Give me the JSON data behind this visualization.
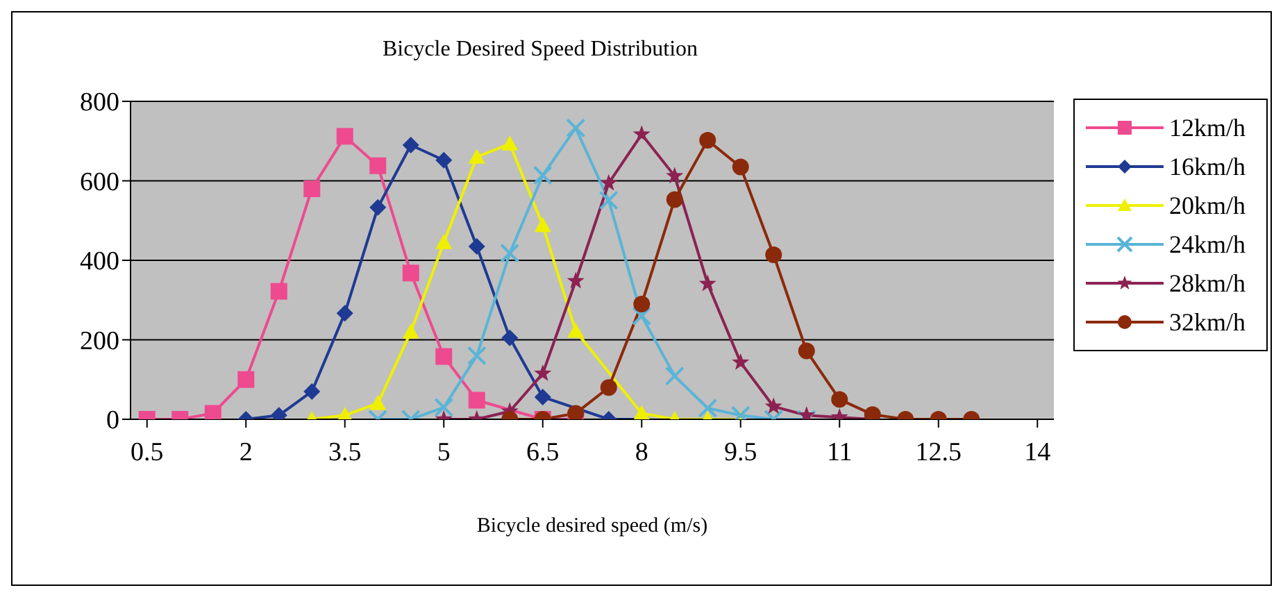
{
  "chart_data": {
    "type": "line",
    "title": "Bicycle Desired Speed Distribution",
    "xlabel": "Bicycle desired speed (m/s)",
    "xlim": [
      0.25,
      14.25
    ],
    "xticks": [
      0.5,
      2,
      3.5,
      5,
      6.5,
      8,
      9.5,
      11,
      12.5,
      14
    ],
    "ylim": [
      0,
      800
    ],
    "yticks": [
      0,
      200,
      400,
      600,
      800
    ],
    "grid": "y",
    "legend": "right",
    "series": [
      {
        "name": "12km/h",
        "color": "#ee4a8f",
        "marker": "square",
        "x": [
          0.5,
          1,
          1.5,
          2,
          2.5,
          3,
          3.5,
          4,
          4.5,
          5,
          5.5,
          6,
          6.5,
          7
        ],
        "values": [
          0,
          0,
          15,
          100,
          322,
          580,
          712,
          638,
          368,
          158,
          48,
          null,
          0,
          0
        ]
      },
      {
        "name": "16km/h",
        "color": "#1f3a93",
        "marker": "diamond",
        "x": [
          2,
          2.5,
          3,
          3.5,
          4,
          4.5,
          5,
          5.5,
          6,
          6.5,
          7,
          7.5,
          8
        ],
        "values": [
          0,
          10,
          70,
          267,
          533,
          690,
          652,
          435,
          205,
          56,
          null,
          0,
          0
        ]
      },
      {
        "name": "20km/h",
        "color": "#eef000",
        "marker": "triangle",
        "x": [
          3,
          3.5,
          4,
          4.5,
          5,
          5.5,
          6,
          6.5,
          7,
          7.5,
          8,
          8.5,
          9,
          9.5
        ],
        "values": [
          0,
          10,
          40,
          220,
          445,
          660,
          693,
          488,
          222,
          null,
          15,
          0,
          0,
          0
        ]
      },
      {
        "name": "24km/h",
        "color": "#5ab4d6",
        "marker": "cross",
        "x": [
          4,
          4.5,
          5,
          5.5,
          6,
          6.5,
          7,
          7.5,
          8,
          8.5,
          9,
          9.5,
          10,
          10.5
        ],
        "values": [
          0,
          0,
          30,
          160,
          418,
          614,
          733,
          551,
          260,
          109,
          28,
          10,
          0,
          0
        ]
      },
      {
        "name": "28km/h",
        "color": "#8b2252",
        "marker": "star",
        "x": [
          5,
          5.5,
          6,
          6.5,
          7,
          7.5,
          8,
          8.5,
          9,
          9.5,
          10,
          10.5,
          11,
          11.5
        ],
        "values": [
          0,
          0,
          20,
          115,
          348,
          594,
          717,
          612,
          341,
          143,
          32,
          10,
          5,
          0
        ]
      },
      {
        "name": "32km/h",
        "color": "#8b2a0a",
        "marker": "circle",
        "x": [
          6,
          6.5,
          7,
          7.5,
          8,
          8.5,
          9,
          9.5,
          10,
          10.5,
          11,
          11.5,
          12,
          12.5,
          13
        ],
        "values": [
          0,
          0,
          15,
          80,
          290,
          553,
          702,
          635,
          414,
          172,
          50,
          12,
          0,
          0,
          0
        ]
      }
    ]
  }
}
